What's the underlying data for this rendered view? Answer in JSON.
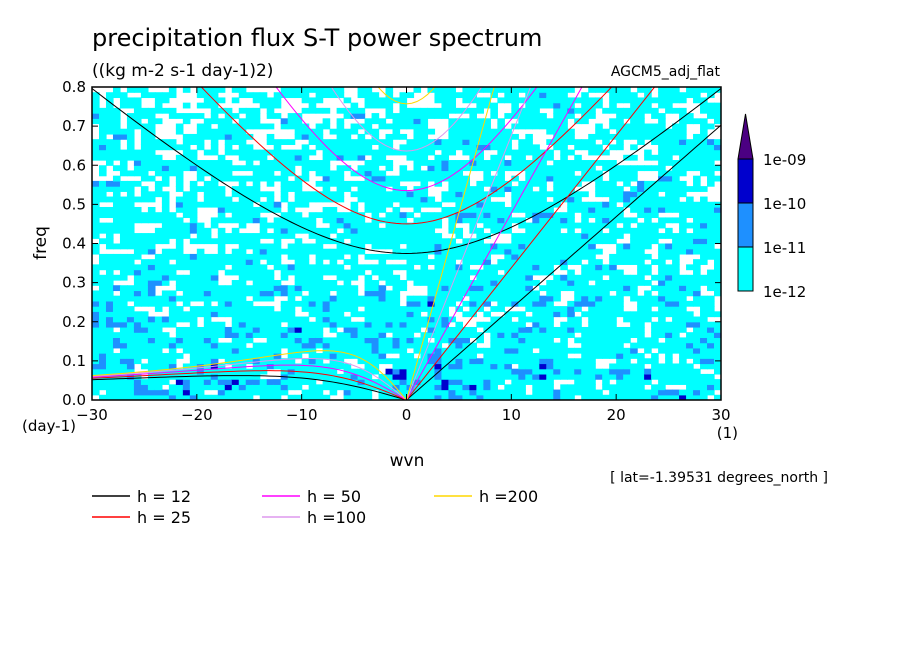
{
  "chart_data": {
    "type": "heatmap",
    "title": "precipitation flux S-T power spectrum",
    "subtitle": "((kg m-2 s-1 day-1)2)",
    "dataset": "AGCM5_adj_flat",
    "xlabel": "wvn",
    "ylabel": "freq",
    "x_unit": "(1)",
    "y_unit": "(day-1)",
    "xlim": [
      -30,
      30
    ],
    "ylim": [
      0,
      0.8
    ],
    "x_ticks": [
      "-30",
      "-20",
      "-10",
      "0",
      "10",
      "20",
      "30"
    ],
    "y_ticks": [
      "0.0",
      "0.1",
      "0.2",
      "0.3",
      "0.4",
      "0.5",
      "0.6",
      "0.7",
      "0.8"
    ],
    "note": "[ lat=-1.39531 degrees_north ]",
    "colorbar": {
      "levels": [
        "1e-12",
        "1e-11",
        "1e-10",
        "1e-09"
      ],
      "colors": [
        "#00ffff",
        "#1e90ff",
        "#0000cd",
        "#4b0082"
      ]
    },
    "dispersion_curves": [
      {
        "label": "h = 12",
        "h": 12,
        "color": "#000000"
      },
      {
        "label": "h = 25",
        "h": 25,
        "color": "#ff0000"
      },
      {
        "label": "h = 50",
        "h": 50,
        "color": "#ff00ff"
      },
      {
        "label": "h =100",
        "h": 100,
        "color": "#dd99ee"
      },
      {
        "label": "h =200",
        "h": 200,
        "color": "#ffd700"
      }
    ]
  }
}
